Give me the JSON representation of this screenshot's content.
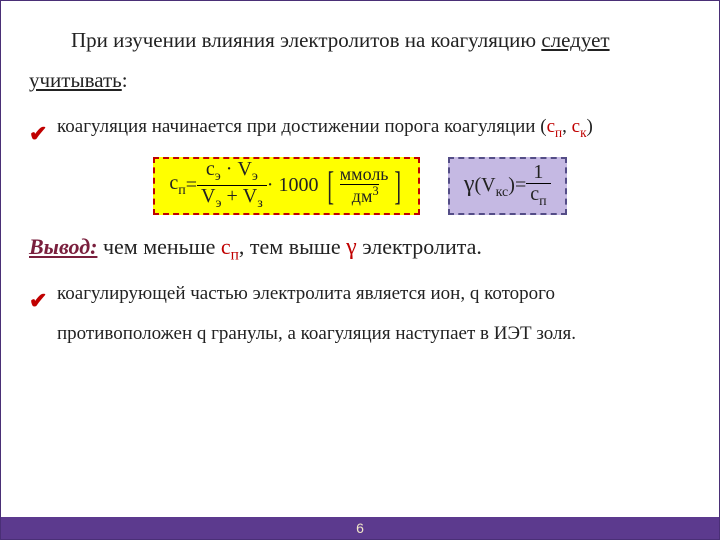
{
  "intro": {
    "pre": "При изучении влияния электролитов на коагуляцию ",
    "underlined": "следует учитывать",
    "after": ":"
  },
  "bullets": {
    "b1a": "коагуляция начинается при достижении порога коагуляции (",
    "b1_c1": "с",
    "b1_s1": "п",
    "b1_sep": ", ",
    "b1_c2": "с",
    "b1_s2": "к",
    "b1b": ")",
    "b2": "коагулирующей частью электролита является ион, q которого противоположен q гранулы, а коагуляция наступает в ИЭТ золя."
  },
  "check": "✔",
  "formula1": {
    "lhs_base": "с",
    "lhs_sub": "п",
    "eq": " = ",
    "num1": "с",
    "num1s": "э",
    "dot": " · ",
    "num2": "V",
    "num2s": "э",
    "den1": "V",
    "den1s": "э",
    "plus": " + ",
    "den2": "V",
    "den2s": "з",
    "mult": " · 1000",
    "unit_top": "ммоль",
    "unit_bot_base": "дм",
    "unit_bot_sup": "3"
  },
  "formula2": {
    "g": "γ",
    "open": "(",
    "vb": "V",
    "vs": "кс",
    "close": ")",
    "eq": " = ",
    "num": "1",
    "den_b": "с",
    "den_s": "п"
  },
  "conclusion": {
    "lead": "Вывод:",
    "a": " чем меньше ",
    "cb": "с",
    "cs": "п",
    "b": ", тем выше ",
    "g": "γ",
    "c": " электролита."
  },
  "page": "6",
  "style": {
    "accent_red": "#c00000",
    "box_yellow": "#ffff00",
    "box_purple": "#c5b9e3",
    "footer_bg": "#5c3a8e"
  }
}
